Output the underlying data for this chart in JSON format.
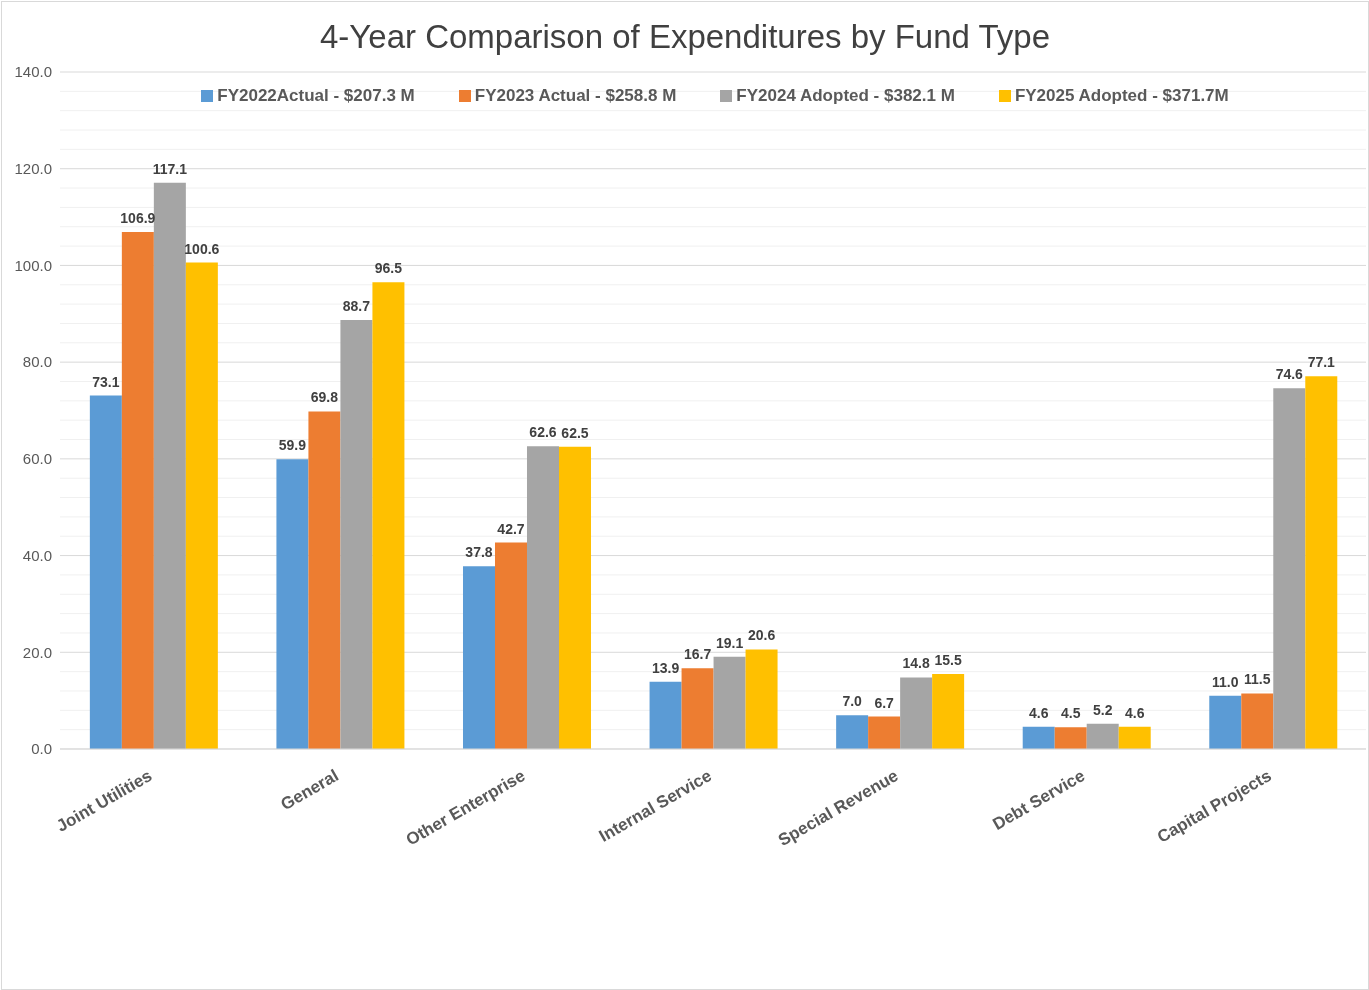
{
  "chart_data": {
    "type": "bar",
    "title": "4-Year Comparison of Expenditures by Fund Type",
    "categories": [
      "Joint Utilities",
      "General",
      "Other Enterprise",
      "Internal Service",
      "Special Revenue",
      "Debt Service",
      "Capital Projects"
    ],
    "series": [
      {
        "name": "FY2022Actual - $207.3 M",
        "color": "#5b9bd5",
        "values": [
          73.1,
          59.9,
          37.8,
          13.9,
          7.0,
          4.6,
          11.0
        ],
        "value_labels": [
          "73.1",
          "59.9",
          "37.8",
          "13.9",
          "7.0",
          "4.6",
          "11.0"
        ]
      },
      {
        "name": "FY2023 Actual - $258.8 M",
        "color": "#ed7d31",
        "values": [
          106.9,
          69.8,
          42.7,
          16.7,
          6.7,
          4.5,
          11.5
        ],
        "value_labels": [
          "106.9",
          "69.8",
          "42.7",
          "16.7",
          "6.7",
          "4.5",
          "11.5"
        ]
      },
      {
        "name": "FY2024 Adopted - $382.1 M",
        "color": "#a5a5a5",
        "values": [
          117.1,
          88.7,
          62.6,
          19.1,
          14.8,
          5.2,
          74.6
        ],
        "value_labels": [
          "117.1",
          "88.7",
          "62.6",
          "19.1",
          "14.8",
          "5.2",
          "74.6"
        ]
      },
      {
        "name": "FY2025 Adopted - $371.7M",
        "color": "#ffc000",
        "values": [
          100.6,
          96.5,
          62.5,
          20.6,
          15.5,
          4.6,
          77.1
        ],
        "value_labels": [
          "100.6",
          "96.5",
          "62.5",
          "20.6",
          "15.5",
          "4.6",
          "77.1"
        ]
      }
    ],
    "ylim": [
      0,
      140
    ],
    "yticks": [
      {
        "value": 0,
        "label": "0.0"
      },
      {
        "value": 4,
        "label": null
      },
      {
        "value": 8,
        "label": null
      },
      {
        "value": 12,
        "label": null
      },
      {
        "value": 16,
        "label": null
      },
      {
        "value": 20,
        "label": "20.0"
      },
      {
        "value": 24,
        "label": null
      },
      {
        "value": 28,
        "label": null
      },
      {
        "value": 32,
        "label": null
      },
      {
        "value": 36,
        "label": null
      },
      {
        "value": 40,
        "label": "40.0"
      },
      {
        "value": 44,
        "label": null
      },
      {
        "value": 48,
        "label": null
      },
      {
        "value": 52,
        "label": null
      },
      {
        "value": 56,
        "label": null
      },
      {
        "value": 60,
        "label": "60.0"
      },
      {
        "value": 64,
        "label": null
      },
      {
        "value": 68,
        "label": null
      },
      {
        "value": 72,
        "label": null
      },
      {
        "value": 76,
        "label": null
      },
      {
        "value": 80,
        "label": "80.0"
      },
      {
        "value": 84,
        "label": null
      },
      {
        "value": 88,
        "label": null
      },
      {
        "value": 92,
        "label": null
      },
      {
        "value": 96,
        "label": null
      },
      {
        "value": 100,
        "label": "100.0"
      },
      {
        "value": 104,
        "label": null
      },
      {
        "value": 108,
        "label": null
      },
      {
        "value": 112,
        "label": null
      },
      {
        "value": 116,
        "label": null
      },
      {
        "value": 120,
        "label": "120.0"
      },
      {
        "value": 124,
        "label": null
      },
      {
        "value": 128,
        "label": null
      },
      {
        "value": 132,
        "label": null
      },
      {
        "value": 136,
        "label": null
      },
      {
        "value": 140,
        "label": "140.0"
      }
    ],
    "grid": "y",
    "legend": "top"
  }
}
